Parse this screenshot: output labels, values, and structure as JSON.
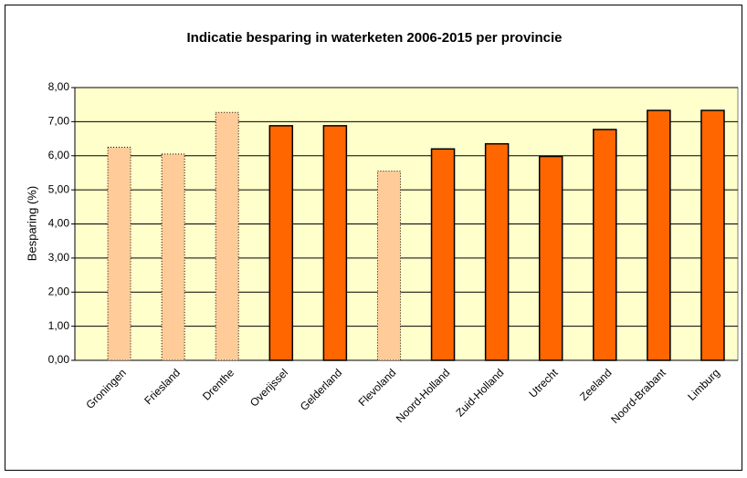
{
  "chart_data": {
    "type": "bar",
    "title": "Indicatie besparing in waterketen 2006-2015 per provincie",
    "y_label": "Besparing (%)",
    "categories": [
      "Groningen",
      "Friesland",
      "Drenthe",
      "Overijssel",
      "Gelderland",
      "Flevoland",
      "Noord-Holland",
      "Zuid-Holland",
      "Utrecht",
      "Zeeland",
      "Noord-Brabant",
      "Limburg"
    ],
    "values": [
      6.25,
      6.05,
      7.27,
      6.88,
      6.88,
      5.55,
      6.2,
      6.35,
      5.98,
      6.77,
      7.33,
      7.33
    ],
    "colors": [
      "#ffcc99",
      "#ffcc99",
      "#ffcc99",
      "#ff6600",
      "#ff6600",
      "#ffcc99",
      "#ff6600",
      "#ff6600",
      "#ff6600",
      "#ff6600",
      "#ff6600",
      "#ff6600"
    ],
    "ylim": [
      0,
      8
    ],
    "yticks": [
      {
        "value": 0,
        "label": "0,00"
      },
      {
        "value": 1,
        "label": "1,00"
      },
      {
        "value": 2,
        "label": "2,00"
      },
      {
        "value": 3,
        "label": "3,00"
      },
      {
        "value": 4,
        "label": "4,00"
      },
      {
        "value": 5,
        "label": "5,00"
      },
      {
        "value": 6,
        "label": "6,00"
      },
      {
        "value": 7,
        "label": "7,00"
      },
      {
        "value": 8,
        "label": "8,00"
      }
    ],
    "grid": true
  }
}
